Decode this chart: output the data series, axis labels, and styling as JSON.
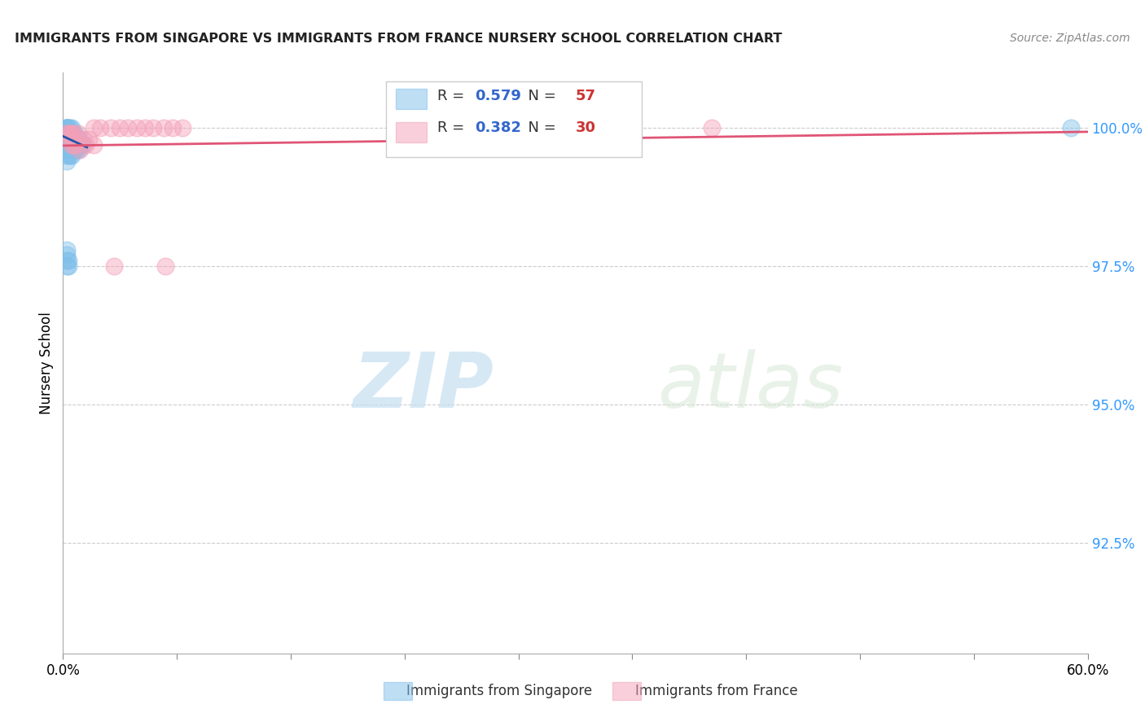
{
  "title": "IMMIGRANTS FROM SINGAPORE VS IMMIGRANTS FROM FRANCE NURSERY SCHOOL CORRELATION CHART",
  "source": "Source: ZipAtlas.com",
  "ylabel": "Nursery School",
  "ytick_labels": [
    "100.0%",
    "97.5%",
    "95.0%",
    "92.5%"
  ],
  "ytick_values": [
    1.0,
    0.975,
    0.95,
    0.925
  ],
  "xlim": [
    0.0,
    0.6
  ],
  "ylim": [
    0.905,
    1.01
  ],
  "watermark_zip": "ZIP",
  "watermark_atlas": "atlas",
  "singapore_color": "#7fbfea",
  "france_color": "#f4a0b8",
  "singapore_trend_color": "#2255aa",
  "france_trend_color": "#e05575",
  "legend_r1": "0.579",
  "legend_n1": "57",
  "legend_r2": "0.382",
  "legend_n2": "30",
  "legend_text_color": "#333333",
  "legend_num_color": "#3366cc",
  "legend_n_color": "#cc3333",
  "ytick_color": "#3399ff",
  "xtick_left": "0.0%",
  "xtick_right": "60.0%",
  "footer_sg": "Immigrants from Singapore",
  "footer_fr": "Immigrants from France",
  "sg_x": [
    0.002,
    0.002,
    0.002,
    0.002,
    0.002,
    0.002,
    0.002,
    0.002,
    0.003,
    0.003,
    0.003,
    0.003,
    0.003,
    0.004,
    0.004,
    0.004,
    0.004,
    0.005,
    0.005,
    0.005,
    0.006,
    0.006,
    0.006,
    0.007,
    0.007,
    0.007,
    0.008,
    0.008,
    0.009,
    0.009,
    0.01,
    0.01,
    0.011,
    0.012,
    0.002,
    0.002,
    0.003,
    0.003,
    0.004,
    0.004,
    0.005,
    0.005,
    0.006,
    0.007,
    0.008,
    0.009,
    0.002,
    0.002,
    0.003,
    0.004,
    0.002,
    0.002,
    0.003,
    0.003,
    0.002,
    0.002,
    0.59
  ],
  "sg_y": [
    1.0,
    1.0,
    1.0,
    1.0,
    1.0,
    1.0,
    1.0,
    0.999,
    1.0,
    0.999,
    0.999,
    0.999,
    0.999,
    1.0,
    0.999,
    0.998,
    0.998,
    1.0,
    0.999,
    0.998,
    0.999,
    0.998,
    0.998,
    0.999,
    0.998,
    0.997,
    0.998,
    0.997,
    0.998,
    0.997,
    0.998,
    0.997,
    0.997,
    0.997,
    0.997,
    0.996,
    0.997,
    0.996,
    0.997,
    0.996,
    0.996,
    0.995,
    0.996,
    0.996,
    0.996,
    0.996,
    0.995,
    0.994,
    0.995,
    0.995,
    0.975,
    0.976,
    0.976,
    0.975,
    0.977,
    0.978,
    1.0
  ],
  "fr_x": [
    0.018,
    0.022,
    0.028,
    0.033,
    0.038,
    0.043,
    0.048,
    0.053,
    0.059,
    0.064,
    0.07,
    0.38,
    0.002,
    0.003,
    0.004,
    0.005,
    0.006,
    0.007,
    0.009,
    0.012,
    0.015,
    0.018,
    0.004,
    0.005,
    0.006,
    0.008,
    0.01,
    0.013,
    0.03,
    0.06
  ],
  "fr_y": [
    1.0,
    1.0,
    1.0,
    1.0,
    1.0,
    1.0,
    1.0,
    1.0,
    1.0,
    1.0,
    1.0,
    1.0,
    0.999,
    0.999,
    0.999,
    0.999,
    0.999,
    0.998,
    0.999,
    0.998,
    0.998,
    0.997,
    0.998,
    0.997,
    0.997,
    0.997,
    0.996,
    0.997,
    0.975,
    0.975
  ],
  "sg_trend_x": [
    0.0,
    0.014
  ],
  "sg_trend_y": [
    0.9985,
    0.9965
  ],
  "fr_trend_x": [
    0.0,
    0.6
  ],
  "fr_trend_y": [
    0.9968,
    0.9993
  ]
}
